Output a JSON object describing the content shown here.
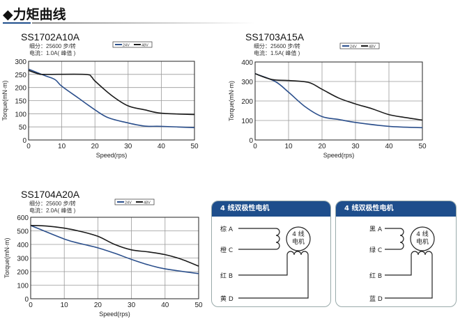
{
  "header": {
    "icon": "diamond-bullet",
    "title": "力矩曲线",
    "accent": "#1e4e8c"
  },
  "series_colors": {
    "24V": "#2b4f8c",
    "48V": "#1a1a1a"
  },
  "chart_data": [
    {
      "type": "line",
      "title": "SS1702A10A",
      "subtitle": [
        "细分：25600 步/转",
        "电流：1.0A( 峰值 )"
      ],
      "xlabel": "Speed(rps)",
      "ylabel": "Torque(mN·m)",
      "xlim": [
        0,
        50
      ],
      "ylim": [
        0,
        300
      ],
      "xticks": [
        0,
        10,
        20,
        30,
        40,
        50
      ],
      "yticks": [
        0,
        50,
        100,
        150,
        200,
        250,
        300
      ],
      "grid": true,
      "legend": "top-center",
      "series": [
        {
          "name": "24V",
          "x": [
            0,
            5,
            8,
            10,
            15,
            20,
            24,
            30,
            35,
            40,
            50
          ],
          "y": [
            270,
            245,
            230,
            205,
            160,
            115,
            85,
            65,
            53,
            52,
            47
          ]
        },
        {
          "name": "48V",
          "x": [
            0,
            3,
            5,
            17,
            19,
            20,
            25,
            30,
            35,
            40,
            50
          ],
          "y": [
            265,
            252,
            250,
            250,
            240,
            225,
            170,
            130,
            115,
            102,
            97
          ]
        }
      ]
    },
    {
      "type": "line",
      "title": "SS1703A15A",
      "subtitle": [
        "细分：25600 步/转",
        "电流：1.5A( 峰值 )"
      ],
      "xlabel": "Speed(rps)",
      "ylabel": "Torque(mN·m)",
      "xlim": [
        0,
        50
      ],
      "ylim": [
        0,
        400
      ],
      "xticks": [
        0,
        10,
        20,
        30,
        40,
        50
      ],
      "yticks": [
        0,
        100,
        200,
        300,
        400
      ],
      "grid": true,
      "legend": "top-center",
      "series": [
        {
          "name": "24V",
          "x": [
            0,
            6,
            10,
            15,
            20,
            25,
            30,
            40,
            50
          ],
          "y": [
            340,
            300,
            245,
            170,
            120,
            105,
            90,
            70,
            63
          ]
        },
        {
          "name": "48V",
          "x": [
            0,
            5,
            10,
            16,
            20,
            25,
            30,
            35,
            40,
            45,
            50
          ],
          "y": [
            340,
            310,
            305,
            295,
            260,
            215,
            185,
            160,
            130,
            115,
            102
          ]
        }
      ]
    },
    {
      "type": "line",
      "title": "SS1704A20A",
      "subtitle": [
        "细分：25600 步/转",
        "电流：2.0A( 峰值 )"
      ],
      "xlabel": "Speed(rps)",
      "ylabel": "Torque(mN·m)",
      "xlim": [
        0,
        50
      ],
      "ylim": [
        0,
        600
      ],
      "xticks": [
        0,
        10,
        20,
        30,
        40,
        50
      ],
      "yticks": [
        0,
        100,
        200,
        300,
        400,
        500,
        600
      ],
      "grid": true,
      "legend": "top-center",
      "series": [
        {
          "name": "24V",
          "x": [
            0,
            10,
            15,
            20,
            25,
            30,
            35,
            40,
            50
          ],
          "y": [
            540,
            440,
            405,
            375,
            335,
            290,
            250,
            220,
            185
          ]
        },
        {
          "name": "48V",
          "x": [
            0,
            5,
            10,
            15,
            20,
            25,
            30,
            35,
            40,
            45,
            50
          ],
          "y": [
            540,
            535,
            520,
            495,
            460,
            400,
            360,
            345,
            325,
            290,
            240
          ]
        }
      ]
    }
  ],
  "wiring": [
    {
      "title": "4 线双极性电机",
      "motor": [
        "4 线",
        "电机"
      ],
      "wires": [
        "棕 A",
        "橙 C",
        "红 B",
        "黄 D"
      ]
    },
    {
      "title": "4 线双极性电机",
      "motor": [
        "4 线",
        "电机"
      ],
      "wires": [
        "黑 A",
        "绿 C",
        "红 B",
        "蓝 D"
      ]
    }
  ]
}
